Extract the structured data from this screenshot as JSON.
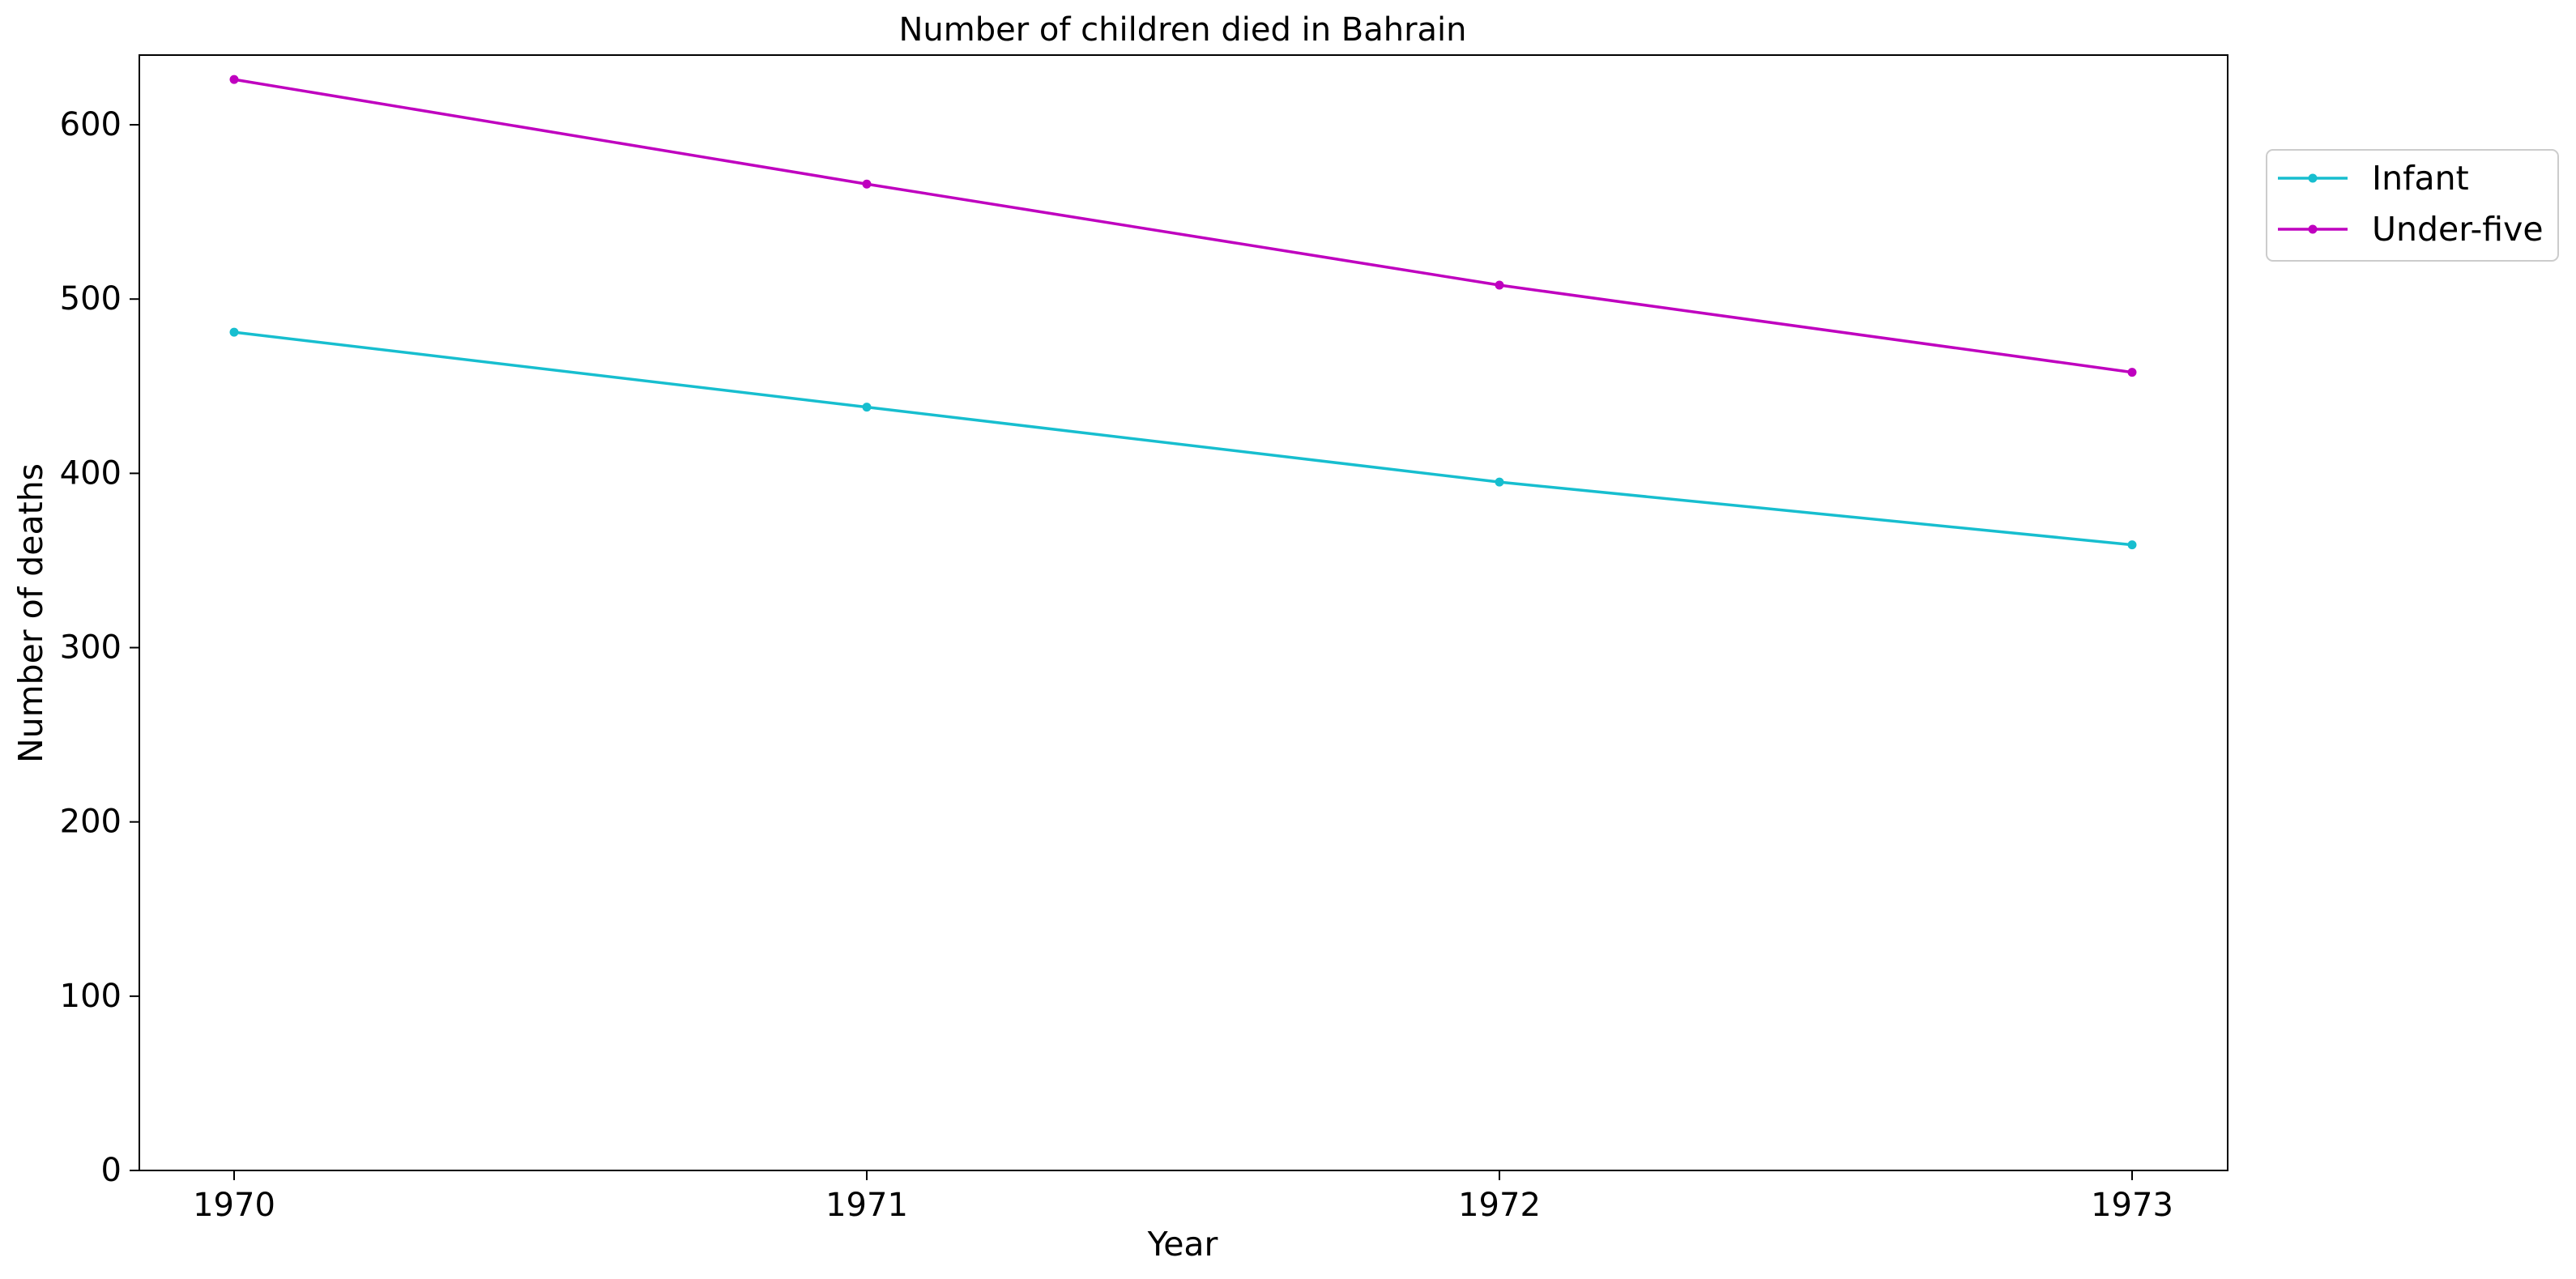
{
  "chart_data": {
    "type": "line",
    "title": "Number of children died in Bahrain",
    "xlabel": "Year",
    "ylabel": "Number of deaths",
    "categories": [
      "1970",
      "1971",
      "1972",
      "1973"
    ],
    "series": [
      {
        "name": "Infant",
        "values": [
          481,
          438,
          395,
          359
        ],
        "color": "#17becf",
        "marker": "circle"
      },
      {
        "name": "Under-five",
        "values": [
          626,
          566,
          508,
          458
        ],
        "color": "#bf00bf",
        "marker": "circle"
      }
    ],
    "ylim": [
      0,
      640
    ],
    "yticks": [
      0,
      100,
      200,
      300,
      400,
      500,
      600
    ],
    "grid": false,
    "legend_position": "upper right, outside plot area"
  }
}
